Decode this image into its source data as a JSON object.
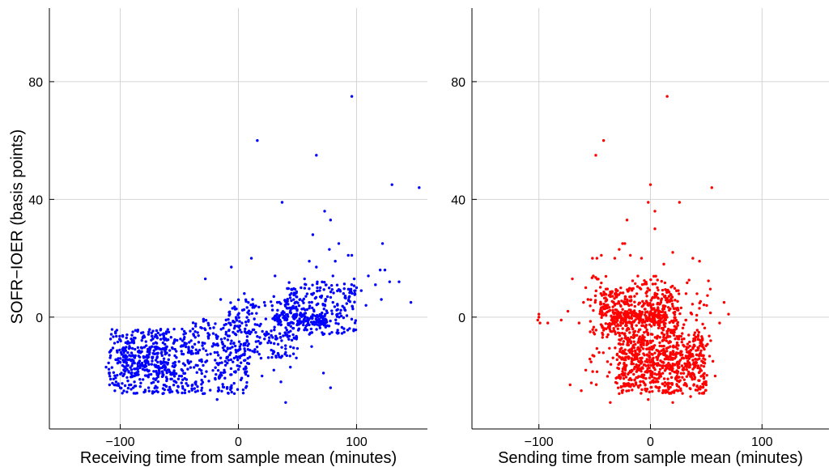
{
  "chart_data": [
    {
      "type": "scatter",
      "xlabel": "Receiving time from sample mean (minutes)",
      "ylabel": "SOFR−IOER (basis points)",
      "xlim": [
        -160,
        160
      ],
      "ylim": [
        -38,
        105
      ],
      "xticks": [
        -100,
        0,
        100
      ],
      "yticks": [
        0,
        40,
        80
      ],
      "xtick_labels": [
        "−100",
        "0",
        "100"
      ],
      "ytick_labels": [
        "0",
        "40",
        "80"
      ],
      "grid": true,
      "series": [
        {
          "color": "#0000ff",
          "points": [
            [
              96,
              75
            ],
            [
              16,
              60
            ],
            [
              66,
              55
            ],
            [
              130,
              45
            ],
            [
              153,
              44
            ],
            [
              37,
              39
            ],
            [
              73,
              36
            ],
            [
              78,
              33
            ],
            [
              63,
              28
            ],
            [
              85,
              25
            ],
            [
              122,
              25
            ],
            [
              77,
              23
            ],
            [
              93,
              21
            ],
            [
              96,
              21
            ],
            [
              11,
              20
            ],
            [
              60,
              19
            ],
            [
              82,
              19
            ],
            [
              66,
              17
            ],
            [
              120,
              16
            ],
            [
              124,
              16
            ],
            [
              -6,
              17
            ],
            [
              31,
              14
            ],
            [
              80,
              14
            ],
            [
              110,
              14
            ],
            [
              -28,
              13
            ],
            [
              56,
              13
            ],
            [
              98,
              13
            ],
            [
              128,
              12
            ],
            [
              136,
              12
            ],
            [
              146,
              5
            ],
            [
              100,
              10
            ],
            [
              104,
              9
            ],
            [
              116,
              11
            ],
            [
              89,
              8
            ],
            [
              94,
              7
            ],
            [
              108,
              4
            ],
            [
              121,
              6
            ],
            [
              -15,
              6
            ],
            [
              5,
              8
            ],
            [
              -5,
              3
            ],
            [
              12,
              6
            ],
            [
              22,
              5
            ],
            [
              30,
              7
            ],
            [
              3,
              -2
            ],
            [
              18,
              -3
            ],
            [
              35,
              -1
            ],
            [
              48,
              3
            ],
            [
              64,
              2
            ],
            [
              74,
              6
            ],
            [
              80,
              5
            ],
            [
              84,
              1
            ],
            [
              14,
              -11
            ],
            [
              26,
              -8
            ],
            [
              -2,
              -6
            ],
            [
              8,
              -14
            ],
            [
              40,
              -12
            ],
            [
              -40,
              -8
            ],
            [
              -20,
              -12
            ],
            [
              -8,
              -2
            ],
            [
              20,
              -20
            ],
            [
              30,
              -18
            ],
            [
              44,
              -17
            ],
            [
              62,
              -10
            ],
            [
              72,
              -19
            ],
            [
              36,
              -22
            ],
            [
              78,
              -24
            ],
            [
              -104,
              -5
            ],
            [
              -96,
              -15
            ],
            [
              -84,
              -12
            ],
            [
              -70,
              -6
            ],
            [
              -60,
              -16
            ],
            [
              -50,
              -20
            ],
            [
              -44,
              -9
            ],
            [
              -30,
              -26
            ],
            [
              -18,
              -28
            ],
            [
              -6,
              -24
            ],
            [
              -112,
              -17
            ],
            [
              -88,
              -22
            ],
            [
              -76,
              -24
            ],
            [
              -64,
              -26
            ],
            [
              -52,
              -25
            ],
            [
              40,
              -29
            ],
            [
              -100,
              -24
            ],
            [
              -36,
              -22
            ],
            [
              -12,
              -18
            ]
          ]
        },
        {
          "color": "#0000ff",
          "clusters": [
            {
              "x_range": [
                -110,
                -40
              ],
              "y_range": [
                -26,
                -4
              ],
              "count": 380
            },
            {
              "x_range": [
                -40,
                10
              ],
              "y_range": [
                -26,
                0
              ],
              "count": 230
            },
            {
              "x_range": [
                -10,
                50
              ],
              "y_range": [
                -14,
                6
              ],
              "count": 200
            },
            {
              "x_range": [
                40,
                100
              ],
              "y_range": [
                -6,
                12
              ],
              "count": 230
            },
            {
              "x_range": [
                -100,
                -60
              ],
              "y_range": [
                -20,
                -10
              ],
              "count": 120
            },
            {
              "x_range": [
                30,
                75
              ],
              "y_range": [
                -3,
                1
              ],
              "count": 110
            }
          ]
        }
      ]
    },
    {
      "type": "scatter",
      "xlabel": "Sending time from sample mean (minutes)",
      "ylabel": "",
      "xlim": [
        -160,
        160
      ],
      "ylim": [
        -38,
        105
      ],
      "xticks": [
        -100,
        0,
        100
      ],
      "yticks": [
        0,
        40,
        80
      ],
      "xtick_labels": [
        "−100",
        "0",
        "100"
      ],
      "ytick_labels": [
        "0",
        "40",
        "80"
      ],
      "grid": true,
      "series": [
        {
          "color": "#ff0000",
          "points": [
            [
              15,
              75
            ],
            [
              -42,
              60
            ],
            [
              -49,
              55
            ],
            [
              55,
              44
            ],
            [
              0,
              45
            ],
            [
              -2,
              39
            ],
            [
              4,
              36
            ],
            [
              26,
              39
            ],
            [
              4,
              30
            ],
            [
              -21,
              33
            ],
            [
              -25,
              25
            ],
            [
              -23,
              25
            ],
            [
              -28,
              23
            ],
            [
              -18,
              21
            ],
            [
              -44,
              21
            ],
            [
              -48,
              20
            ],
            [
              -32,
              20
            ],
            [
              20,
              22
            ],
            [
              38,
              20
            ],
            [
              44,
              19
            ],
            [
              -8,
              20
            ],
            [
              12,
              18
            ],
            [
              -52,
              20
            ],
            [
              -100,
              1
            ],
            [
              -101,
              -1
            ],
            [
              -99,
              -2
            ],
            [
              -100,
              0
            ],
            [
              -92,
              -2
            ],
            [
              -80,
              -1
            ],
            [
              -74,
              2
            ],
            [
              -70,
              13
            ],
            [
              -60,
              5
            ],
            [
              -58,
              10
            ],
            [
              -56,
              6
            ],
            [
              -64,
              -2
            ],
            [
              -54,
              -5
            ],
            [
              62,
              -2
            ],
            [
              66,
              5
            ],
            [
              70,
              1
            ],
            [
              54,
              -8
            ],
            [
              56,
              -15
            ],
            [
              58,
              -20
            ],
            [
              -72,
              -23
            ],
            [
              -62,
              -25
            ],
            [
              -58,
              -18
            ],
            [
              -46,
              -12
            ],
            [
              36,
              -27
            ],
            [
              20,
              -29
            ],
            [
              -2,
              -28
            ],
            [
              -28,
              -26
            ],
            [
              -36,
              -29
            ]
          ]
        },
        {
          "color": "#ff0000",
          "clusters": [
            {
              "x_range": [
                -30,
                50
              ],
              "y_range": [
                -26,
                -6
              ],
              "count": 550
            },
            {
              "x_range": [
                -45,
                25
              ],
              "y_range": [
                -6,
                10
              ],
              "count": 380
            },
            {
              "x_range": [
                -35,
                15
              ],
              "y_range": [
                -2,
                2
              ],
              "count": 140
            },
            {
              "x_range": [
                -55,
                55
              ],
              "y_range": [
                -24,
                14
              ],
              "count": 230
            },
            {
              "x_range": [
                -25,
                45
              ],
              "y_range": [
                -18,
                -12
              ],
              "count": 120
            }
          ]
        }
      ]
    }
  ]
}
